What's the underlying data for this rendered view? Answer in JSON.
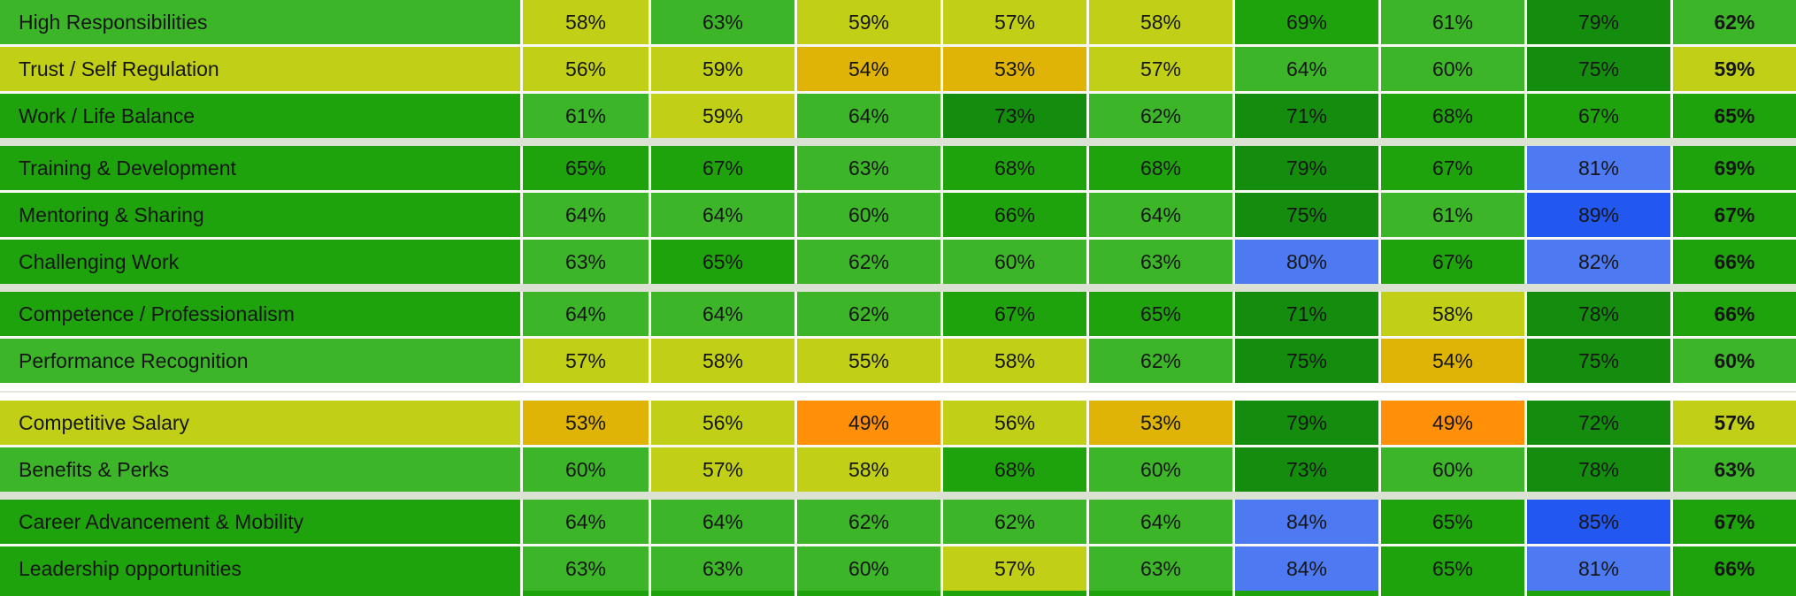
{
  "palette": {
    "yellow_green": "#c1d016",
    "green": "#3cb529",
    "green_dark": "#1ea30d",
    "green_deep": "#148d0e",
    "gold": "#dfb407",
    "orange": "#ff9008",
    "blue": "#4d7af2",
    "blue_deep": "#2257f0",
    "text": "#161616",
    "thin_separator": "#f7f9f2",
    "group_separator": "#dbe2d3",
    "section_gap_background": "#ffffff",
    "section_gap_line": "#e4e7de",
    "partial_row": "#1ea30d"
  },
  "table": {
    "rows": [
      {
        "label": "High Responsibilities",
        "label_color": "green",
        "cells": [
          {
            "value": "58%",
            "color": "yellow_green"
          },
          {
            "value": "63%",
            "color": "green"
          },
          {
            "value": "59%",
            "color": "yellow_green"
          },
          {
            "value": "57%",
            "color": "yellow_green"
          },
          {
            "value": "58%",
            "color": "yellow_green"
          },
          {
            "value": "69%",
            "color": "green_dark"
          },
          {
            "value": "61%",
            "color": "green"
          },
          {
            "value": "79%",
            "color": "green_deep"
          },
          {
            "value": "62%",
            "color": "green"
          }
        ],
        "separator_after": "thin"
      },
      {
        "label": "Trust / Self Regulation",
        "label_color": "yellow_green",
        "cells": [
          {
            "value": "56%",
            "color": "yellow_green"
          },
          {
            "value": "59%",
            "color": "yellow_green"
          },
          {
            "value": "54%",
            "color": "gold"
          },
          {
            "value": "53%",
            "color": "gold"
          },
          {
            "value": "57%",
            "color": "yellow_green"
          },
          {
            "value": "64%",
            "color": "green"
          },
          {
            "value": "60%",
            "color": "green"
          },
          {
            "value": "75%",
            "color": "green_deep"
          },
          {
            "value": "59%",
            "color": "yellow_green"
          }
        ],
        "separator_after": "thin"
      },
      {
        "label": "Work / Life Balance",
        "label_color": "green_dark",
        "cells": [
          {
            "value": "61%",
            "color": "green"
          },
          {
            "value": "59%",
            "color": "yellow_green"
          },
          {
            "value": "64%",
            "color": "green"
          },
          {
            "value": "73%",
            "color": "green_deep"
          },
          {
            "value": "62%",
            "color": "green"
          },
          {
            "value": "71%",
            "color": "green_deep"
          },
          {
            "value": "68%",
            "color": "green_dark"
          },
          {
            "value": "67%",
            "color": "green_dark"
          },
          {
            "value": "65%",
            "color": "green_dark"
          }
        ],
        "separator_after": "group"
      },
      {
        "label": "Training & Development",
        "label_color": "green_dark",
        "cells": [
          {
            "value": "65%",
            "color": "green_dark"
          },
          {
            "value": "67%",
            "color": "green_dark"
          },
          {
            "value": "63%",
            "color": "green"
          },
          {
            "value": "68%",
            "color": "green_dark"
          },
          {
            "value": "68%",
            "color": "green_dark"
          },
          {
            "value": "79%",
            "color": "green_deep"
          },
          {
            "value": "67%",
            "color": "green_dark"
          },
          {
            "value": "81%",
            "color": "blue"
          },
          {
            "value": "69%",
            "color": "green_dark"
          }
        ],
        "separator_after": "thin"
      },
      {
        "label": "Mentoring & Sharing",
        "label_color": "green_dark",
        "cells": [
          {
            "value": "64%",
            "color": "green"
          },
          {
            "value": "64%",
            "color": "green"
          },
          {
            "value": "60%",
            "color": "green"
          },
          {
            "value": "66%",
            "color": "green_dark"
          },
          {
            "value": "64%",
            "color": "green"
          },
          {
            "value": "75%",
            "color": "green_deep"
          },
          {
            "value": "61%",
            "color": "green"
          },
          {
            "value": "89%",
            "color": "blue_deep"
          },
          {
            "value": "67%",
            "color": "green_dark"
          }
        ],
        "separator_after": "thin"
      },
      {
        "label": "Challenging Work",
        "label_color": "green_dark",
        "cells": [
          {
            "value": "63%",
            "color": "green"
          },
          {
            "value": "65%",
            "color": "green_dark"
          },
          {
            "value": "62%",
            "color": "green"
          },
          {
            "value": "60%",
            "color": "green"
          },
          {
            "value": "63%",
            "color": "green"
          },
          {
            "value": "80%",
            "color": "blue"
          },
          {
            "value": "67%",
            "color": "green_dark"
          },
          {
            "value": "82%",
            "color": "blue"
          },
          {
            "value": "66%",
            "color": "green_dark"
          }
        ],
        "separator_after": "group"
      },
      {
        "label": "Competence / Professionalism",
        "label_color": "green_dark",
        "cells": [
          {
            "value": "64%",
            "color": "green"
          },
          {
            "value": "64%",
            "color": "green"
          },
          {
            "value": "62%",
            "color": "green"
          },
          {
            "value": "67%",
            "color": "green_dark"
          },
          {
            "value": "65%",
            "color": "green_dark"
          },
          {
            "value": "71%",
            "color": "green_deep"
          },
          {
            "value": "58%",
            "color": "yellow_green"
          },
          {
            "value": "78%",
            "color": "green_deep"
          },
          {
            "value": "66%",
            "color": "green_dark"
          }
        ],
        "separator_after": "thin"
      },
      {
        "label": "Performance Recognition",
        "label_color": "green",
        "cells": [
          {
            "value": "57%",
            "color": "yellow_green"
          },
          {
            "value": "58%",
            "color": "yellow_green"
          },
          {
            "value": "55%",
            "color": "yellow_green"
          },
          {
            "value": "58%",
            "color": "yellow_green"
          },
          {
            "value": "62%",
            "color": "green"
          },
          {
            "value": "75%",
            "color": "green_deep"
          },
          {
            "value": "54%",
            "color": "gold"
          },
          {
            "value": "75%",
            "color": "green_deep"
          },
          {
            "value": "60%",
            "color": "green"
          }
        ],
        "separator_after": "big"
      },
      {
        "label": "Competitive Salary",
        "label_color": "yellow_green",
        "cells": [
          {
            "value": "53%",
            "color": "gold"
          },
          {
            "value": "56%",
            "color": "yellow_green"
          },
          {
            "value": "49%",
            "color": "orange"
          },
          {
            "value": "56%",
            "color": "yellow_green"
          },
          {
            "value": "53%",
            "color": "gold"
          },
          {
            "value": "79%",
            "color": "green_deep"
          },
          {
            "value": "49%",
            "color": "orange"
          },
          {
            "value": "72%",
            "color": "green_deep"
          },
          {
            "value": "57%",
            "color": "yellow_green"
          }
        ],
        "separator_after": "thin"
      },
      {
        "label": "Benefits & Perks",
        "label_color": "green",
        "cells": [
          {
            "value": "60%",
            "color": "green"
          },
          {
            "value": "57%",
            "color": "yellow_green"
          },
          {
            "value": "58%",
            "color": "yellow_green"
          },
          {
            "value": "68%",
            "color": "green_dark"
          },
          {
            "value": "60%",
            "color": "green"
          },
          {
            "value": "73%",
            "color": "green_deep"
          },
          {
            "value": "60%",
            "color": "green"
          },
          {
            "value": "78%",
            "color": "green_deep"
          },
          {
            "value": "63%",
            "color": "green"
          }
        ],
        "separator_after": "group"
      },
      {
        "label": "Career Advancement & Mobility",
        "label_color": "green_dark",
        "cells": [
          {
            "value": "64%",
            "color": "green"
          },
          {
            "value": "64%",
            "color": "green"
          },
          {
            "value": "62%",
            "color": "green"
          },
          {
            "value": "62%",
            "color": "green"
          },
          {
            "value": "64%",
            "color": "green"
          },
          {
            "value": "84%",
            "color": "blue"
          },
          {
            "value": "65%",
            "color": "green_dark"
          },
          {
            "value": "85%",
            "color": "blue_deep"
          },
          {
            "value": "67%",
            "color": "green_dark"
          }
        ],
        "separator_after": "thin"
      },
      {
        "label": "Leadership opportunities",
        "label_color": "green_dark",
        "cells": [
          {
            "value": "63%",
            "color": "green"
          },
          {
            "value": "63%",
            "color": "green"
          },
          {
            "value": "60%",
            "color": "green"
          },
          {
            "value": "57%",
            "color": "yellow_green"
          },
          {
            "value": "63%",
            "color": "green"
          },
          {
            "value": "84%",
            "color": "blue"
          },
          {
            "value": "65%",
            "color": "green_dark"
          },
          {
            "value": "81%",
            "color": "blue"
          },
          {
            "value": "66%",
            "color": "green_dark"
          }
        ],
        "separator_after": "strip"
      }
    ]
  },
  "chart_data": {
    "type": "heatmap",
    "rows": [
      "High Responsibilities",
      "Trust / Self Regulation",
      "Work / Life Balance",
      "Training & Development",
      "Mentoring & Sharing",
      "Challenging Work",
      "Competence / Professionalism",
      "Performance Recognition",
      "Competitive Salary",
      "Benefits & Perks",
      "Career Advancement & Mobility",
      "Leadership opportunities"
    ],
    "columns_count": 9,
    "last_column_bold": true,
    "values_percent": [
      [
        58,
        63,
        59,
        57,
        58,
        69,
        61,
        79,
        62
      ],
      [
        56,
        59,
        54,
        53,
        57,
        64,
        60,
        75,
        59
      ],
      [
        61,
        59,
        64,
        73,
        62,
        71,
        68,
        67,
        65
      ],
      [
        65,
        67,
        63,
        68,
        68,
        79,
        67,
        81,
        69
      ],
      [
        64,
        64,
        60,
        66,
        64,
        75,
        61,
        89,
        67
      ],
      [
        63,
        65,
        62,
        60,
        63,
        80,
        67,
        82,
        66
      ],
      [
        64,
        64,
        62,
        67,
        65,
        71,
        58,
        78,
        66
      ],
      [
        57,
        58,
        55,
        58,
        62,
        75,
        54,
        75,
        60
      ],
      [
        53,
        56,
        49,
        56,
        53,
        79,
        49,
        72,
        57
      ],
      [
        60,
        57,
        58,
        68,
        60,
        73,
        60,
        78,
        63
      ],
      [
        64,
        64,
        62,
        62,
        64,
        84,
        65,
        85,
        67
      ],
      [
        63,
        63,
        60,
        57,
        63,
        84,
        65,
        81,
        66
      ]
    ],
    "row_groups": [
      [
        0,
        1,
        2
      ],
      [
        3,
        4,
        5
      ],
      [
        6,
        7
      ],
      [
        8,
        9
      ],
      [
        10,
        11
      ]
    ],
    "color_scale_tiers": {
      "49": "orange",
      "53-54": "gold",
      "55-59": "yellow_green",
      "60-64": "green",
      "65-69": "green_dark",
      "71-79": "green_deep",
      "80-84": "blue",
      "85-89": "blue_deep"
    },
    "grid": "thin light lines between cells",
    "legend_position": "none"
  }
}
